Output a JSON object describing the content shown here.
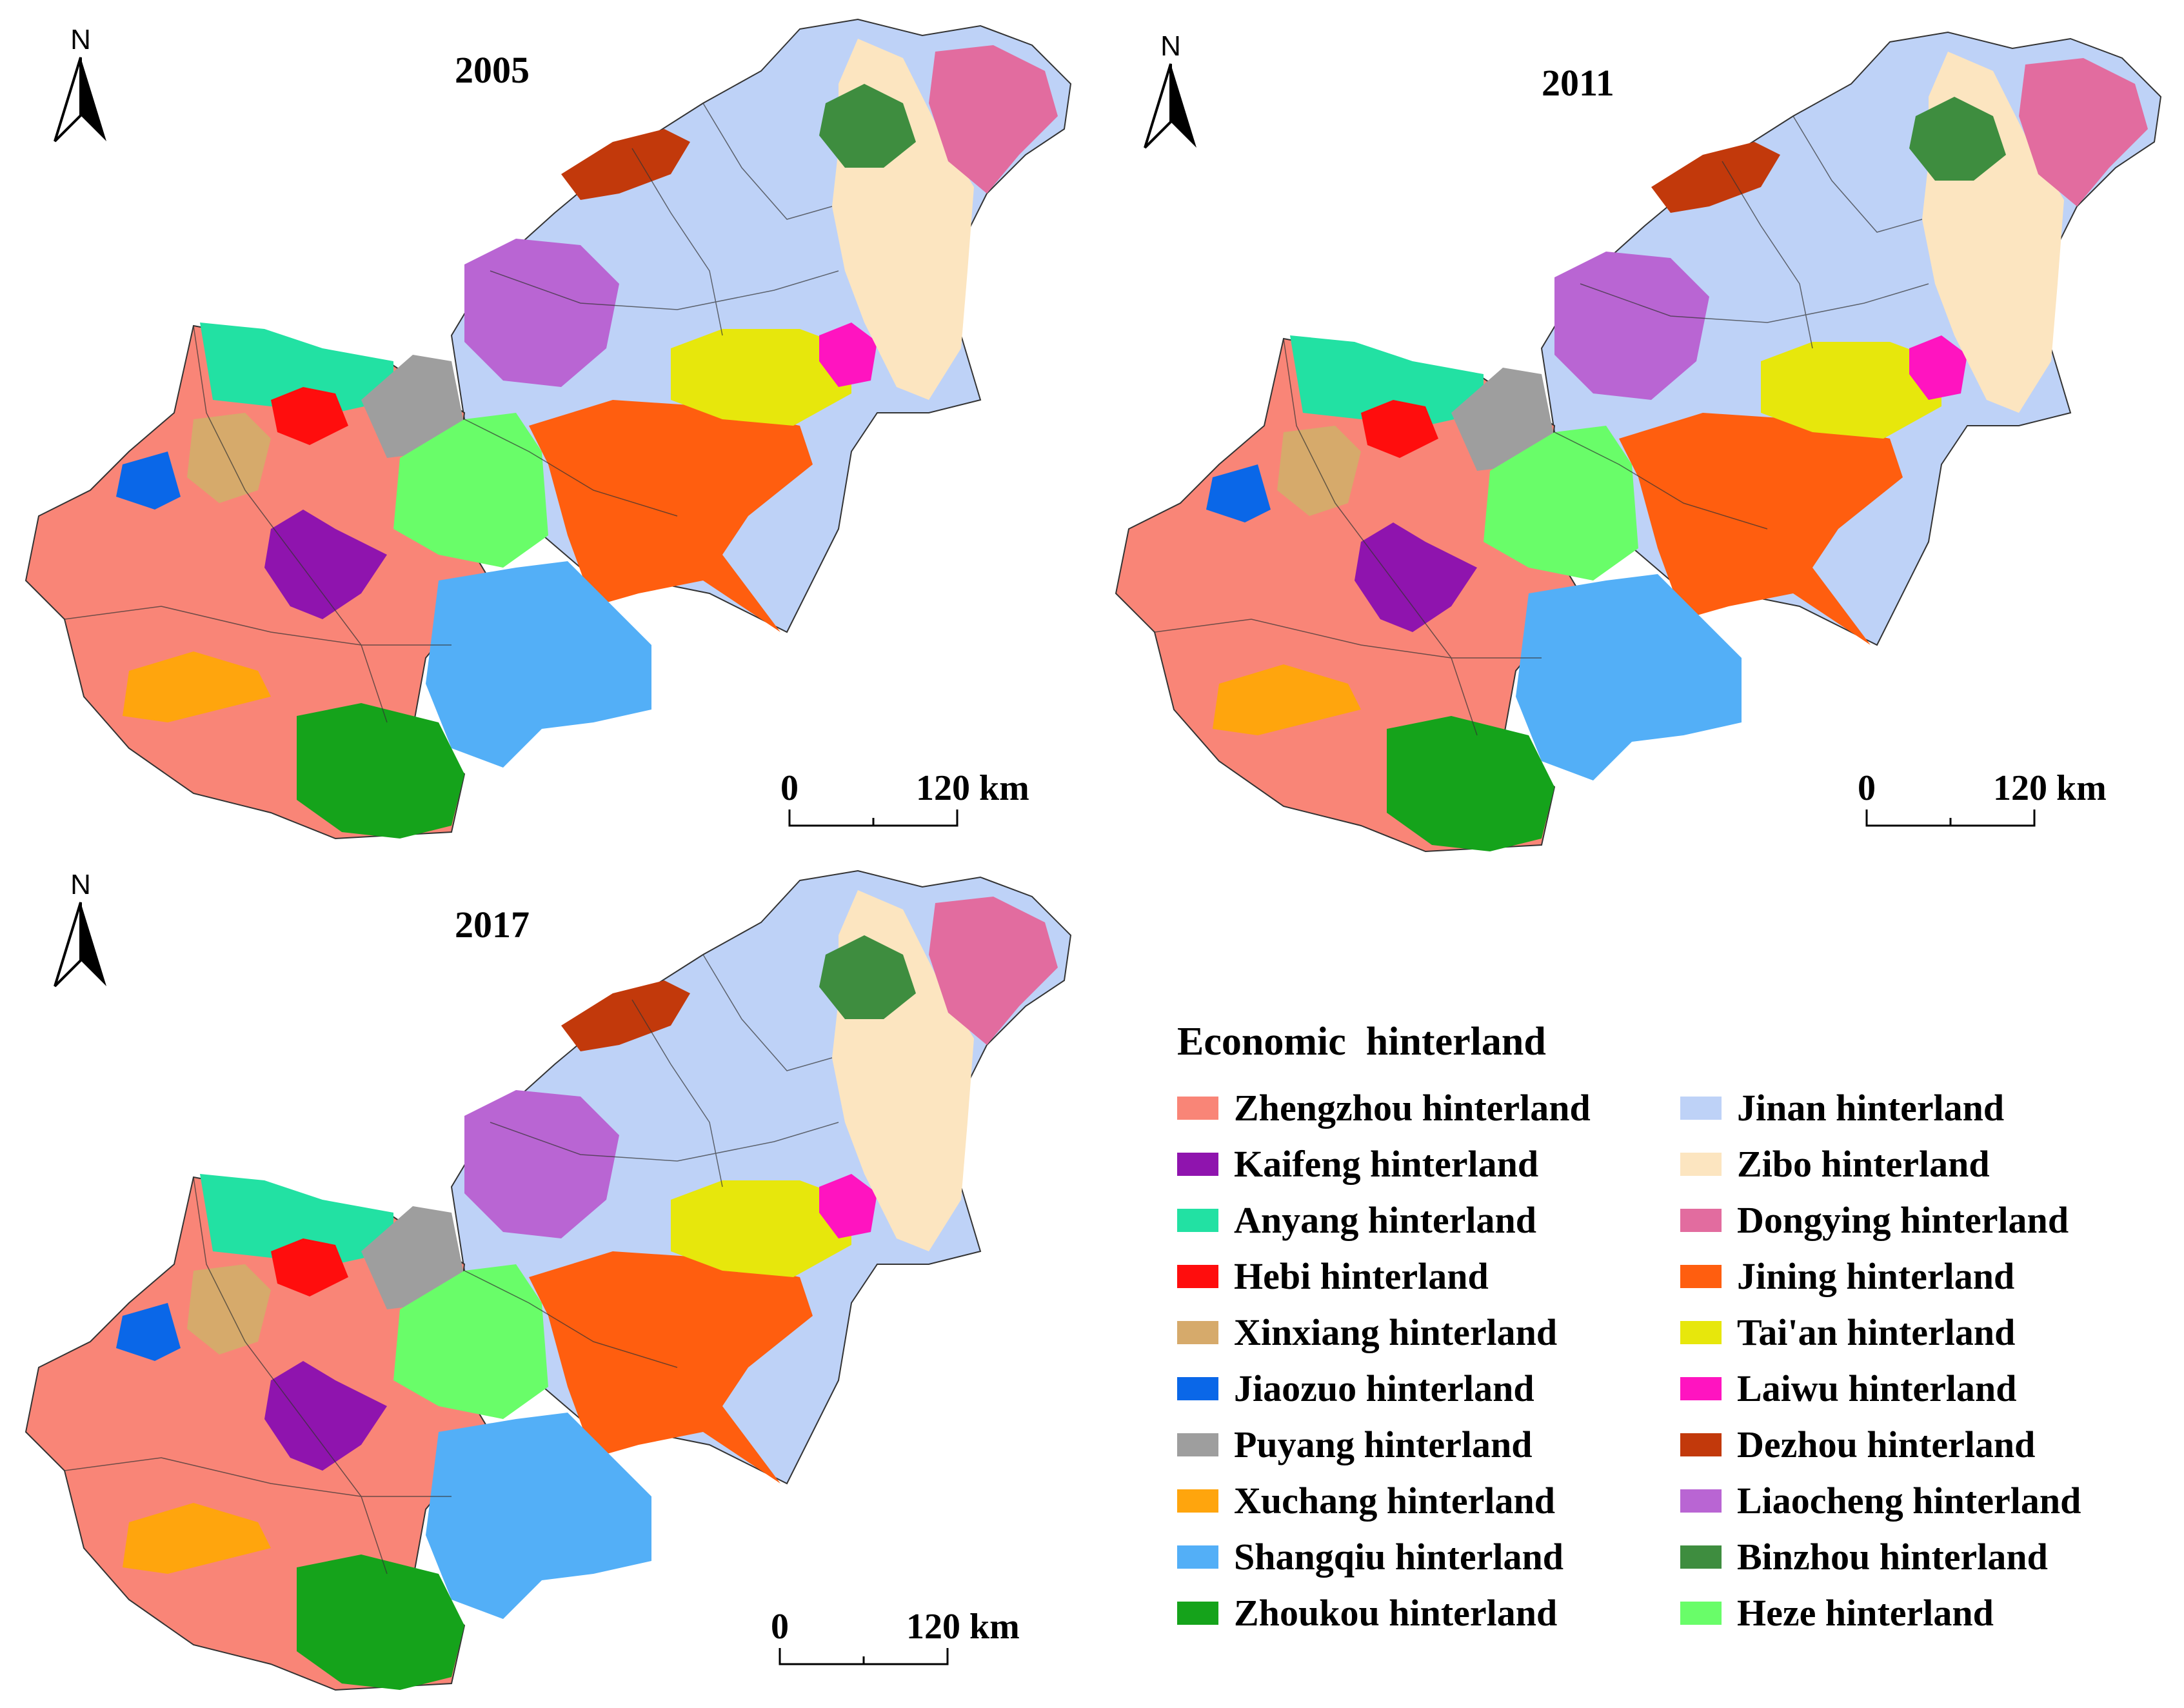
{
  "maps": [
    {
      "year": "2005"
    },
    {
      "year": "2011"
    },
    {
      "year": "2017"
    }
  ],
  "north_arrow_label": "N",
  "scale_bar": {
    "start": "0",
    "end": "120 km"
  },
  "legend": {
    "title": "Economic  hinterland",
    "items": [
      {
        "label": "Zhengzhou hinterland",
        "color": "#f98577"
      },
      {
        "label": "Jinan hinterland",
        "color": "#bed2f7"
      },
      {
        "label": "Kaifeng hinterland",
        "color": "#8f14ae"
      },
      {
        "label": "Zibo hinterland",
        "color": "#fce5c0"
      },
      {
        "label": "Anyang hinterland",
        "color": "#22e1a3"
      },
      {
        "label": "Dongying hinterland",
        "color": "#e26c9f"
      },
      {
        "label": "Hebi hinterland",
        "color": "#ff0d0d"
      },
      {
        "label": "Jining hinterland",
        "color": "#ff5e0f"
      },
      {
        "label": "Xinxiang hinterland",
        "color": "#d6aa6b"
      },
      {
        "label": "Tai'an hinterland",
        "color": "#e7e70c"
      },
      {
        "label": "Jiaozuo hinterland",
        "color": "#0a67e8"
      },
      {
        "label": "Laiwu hinterland",
        "color": "#ff14c0"
      },
      {
        "label": "Puyang hinterland",
        "color": "#9e9e9e"
      },
      {
        "label": "Dezhou hinterland",
        "color": "#c2390b"
      },
      {
        "label": "Xuchang hinterland",
        "color": "#ffa50d"
      },
      {
        "label": "Liaocheng hinterland",
        "color": "#b965d3"
      },
      {
        "label": "Shangqiu hinterland",
        "color": "#53aff7"
      },
      {
        "label": "Binzhou hinterland",
        "color": "#3e8d3f"
      },
      {
        "label": "Zhoukou hinterland",
        "color": "#15a31b"
      },
      {
        "label": "Heze hinterland",
        "color": "#69fd69"
      }
    ]
  }
}
